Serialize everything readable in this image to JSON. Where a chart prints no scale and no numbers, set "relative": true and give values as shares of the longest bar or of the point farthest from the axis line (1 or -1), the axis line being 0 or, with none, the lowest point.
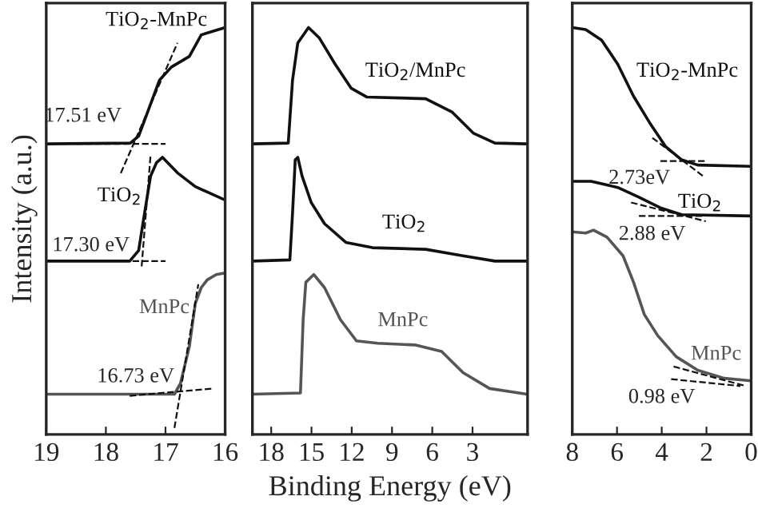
{
  "chart_data": [
    {
      "type": "line",
      "relative": true,
      "ylabel": "Intensity (a.u.)",
      "xlim": [
        19,
        16
      ],
      "xticks": [
        19,
        18,
        17,
        16
      ],
      "tick_labels": "x",
      "grid": false,
      "legend": false,
      "line_style": "solid",
      "series": [
        {
          "name": "TiO$_{2}$-MnPc",
          "color": "#111111",
          "x": [
            19,
            17.59,
            17.45,
            17.3,
            17.1,
            16.9,
            16.6,
            16.4,
            16.2,
            16.0
          ],
          "values": [
            0.714,
            0.716,
            0.733,
            0.792,
            0.871,
            0.903,
            0.929,
            0.982,
            0.991,
            1.0
          ]
        },
        {
          "name": "TiO$_{2}$",
          "color": "#111111",
          "x": [
            19,
            17.6,
            17.45,
            17.35,
            17.25,
            17.15,
            17.05,
            16.8,
            16.5,
            16.0
          ],
          "values": [
            0.426,
            0.426,
            0.452,
            0.545,
            0.635,
            0.668,
            0.681,
            0.643,
            0.609,
            0.576
          ]
        },
        {
          "name": "MnPc",
          "color": "#555555",
          "x": [
            19,
            16.85,
            16.75,
            16.6,
            16.5,
            16.4,
            16.3,
            16.15,
            16.0
          ],
          "values": [
            0.099,
            0.099,
            0.125,
            0.216,
            0.322,
            0.361,
            0.38,
            0.393,
            0.397
          ]
        },
        {
          "color": "#111111",
          "line_style": "dashed",
          "x": [
            18.5,
            17.0
          ],
          "values": [
            0.714,
            0.714
          ]
        },
        {
          "color": "#111111",
          "line_style": "dashed",
          "x": [
            17.75,
            16.8
          ],
          "values": [
            0.642,
            0.962
          ]
        },
        {
          "color": "#111111",
          "line_style": "dashed",
          "x": [
            18.5,
            17.0
          ],
          "values": [
            0.426,
            0.426
          ]
        },
        {
          "color": "#111111",
          "line_style": "dashed",
          "x": [
            17.4,
            17.25
          ],
          "values": [
            0.413,
            0.687
          ]
        },
        {
          "color": "#111111",
          "line_style": "dashed",
          "x": [
            17.6,
            16.2
          ],
          "values": [
            0.095,
            0.113
          ]
        },
        {
          "color": "#111111",
          "line_style": "dashed",
          "x": [
            16.85,
            16.45
          ],
          "values": [
            0.016,
            0.369
          ]
        }
      ],
      "annotations": [
        "17.51 eV",
        "17.30 eV",
        "16.73 eV"
      ]
    },
    {
      "type": "line",
      "relative": true,
      "xlabel": "Binding Energy (eV)",
      "xlim": [
        19.4,
        -1.1
      ],
      "xticks": [
        18,
        15,
        12,
        9,
        6,
        3
      ],
      "tick_labels": "x",
      "grid": false,
      "legend": false,
      "line_style": "solid",
      "series": [
        {
          "name": "TiO$_{2}$/MnPc",
          "color": "#111111",
          "x": [
            19.4,
            16.73,
            16.41,
            16.02,
            15.22,
            14.43,
            13.24,
            12.05,
            10.86,
            8.48,
            6.49,
            4.51,
            2.92,
            1.33,
            -1.05
          ],
          "values": [
            0.714,
            0.716,
            0.871,
            0.962,
            1.0,
            0.975,
            0.91,
            0.851,
            0.829,
            0.827,
            0.825,
            0.792,
            0.74,
            0.716,
            0.714
          ]
        },
        {
          "name": "TiO$_{2}$",
          "color": "#111111",
          "x": [
            19.4,
            16.61,
            16.41,
            16.21,
            16.02,
            15.7,
            15.02,
            14.03,
            12.44,
            10.46,
            6.49,
            3.71,
            1.33,
            -1.05
          ],
          "values": [
            0.426,
            0.429,
            0.544,
            0.675,
            0.681,
            0.635,
            0.57,
            0.518,
            0.472,
            0.459,
            0.455,
            0.439,
            0.426,
            0.426
          ]
        },
        {
          "name": "MnPc",
          "color": "#555555",
          "x": [
            19.4,
            15.82,
            15.62,
            15.42,
            14.83,
            14.03,
            12.84,
            11.65,
            10.06,
            7.29,
            5.3,
            3.71,
            1.73,
            -1.05
          ],
          "values": [
            0.099,
            0.102,
            0.282,
            0.374,
            0.393,
            0.361,
            0.282,
            0.23,
            0.224,
            0.22,
            0.204,
            0.152,
            0.113,
            0.099
          ]
        }
      ]
    },
    {
      "type": "line",
      "relative": true,
      "xlim": [
        8,
        0
      ],
      "xticks": [
        8,
        6,
        4,
        2,
        0
      ],
      "tick_labels": "x",
      "grid": false,
      "legend": false,
      "line_style": "solid",
      "series": [
        {
          "name": "TiO$_{2}$-MnPc",
          "color": "#111111",
          "x": [
            8,
            7.4,
            6.69,
            5.97,
            5.26,
            4.54,
            3.82,
            3.11,
            2.39,
            0
          ],
          "values": [
            1.0,
            0.995,
            0.969,
            0.91,
            0.831,
            0.766,
            0.707,
            0.675,
            0.662,
            0.659
          ]
        },
        {
          "name": "TiO$_{2}$",
          "color": "#111111",
          "x": [
            8,
            7.16,
            5.97,
            5.02,
            4.06,
            3.11,
            0
          ],
          "values": [
            0.622,
            0.622,
            0.607,
            0.583,
            0.557,
            0.54,
            0.537
          ]
        },
        {
          "name": "MnPc",
          "color": "#555555",
          "x": [
            8,
            7.4,
            7.05,
            6.45,
            5.73,
            5.26,
            4.78,
            4.18,
            3.35,
            2.39,
            1.2,
            0
          ],
          "values": [
            0.498,
            0.495,
            0.502,
            0.485,
            0.439,
            0.374,
            0.295,
            0.243,
            0.191,
            0.158,
            0.138,
            0.132
          ]
        },
        {
          "color": "#111111",
          "line_style": "dashed",
          "x": [
            4.06,
            2.03
          ],
          "values": [
            0.672,
            0.672
          ]
        },
        {
          "color": "#111111",
          "line_style": "dashed",
          "x": [
            4.42,
            2.15
          ],
          "values": [
            0.729,
            0.635
          ]
        },
        {
          "color": "#111111",
          "line_style": "dashed",
          "x": [
            5.02,
            2.15
          ],
          "values": [
            0.537,
            0.537
          ]
        },
        {
          "color": "#111111",
          "line_style": "dashed",
          "x": [
            5.37,
            2.03
          ],
          "values": [
            0.57,
            0.524
          ]
        },
        {
          "color": "#111111",
          "line_style": "dashed",
          "x": [
            3.58,
            0.48
          ],
          "values": [
            0.136,
            0.119
          ]
        },
        {
          "color": "#111111",
          "line_style": "dashed",
          "x": [
            3.47,
            0.24
          ],
          "values": [
            0.167,
            0.119
          ]
        }
      ],
      "annotations": [
        "2.73eV",
        "2.88 eV",
        "0.98 eV"
      ]
    }
  ]
}
